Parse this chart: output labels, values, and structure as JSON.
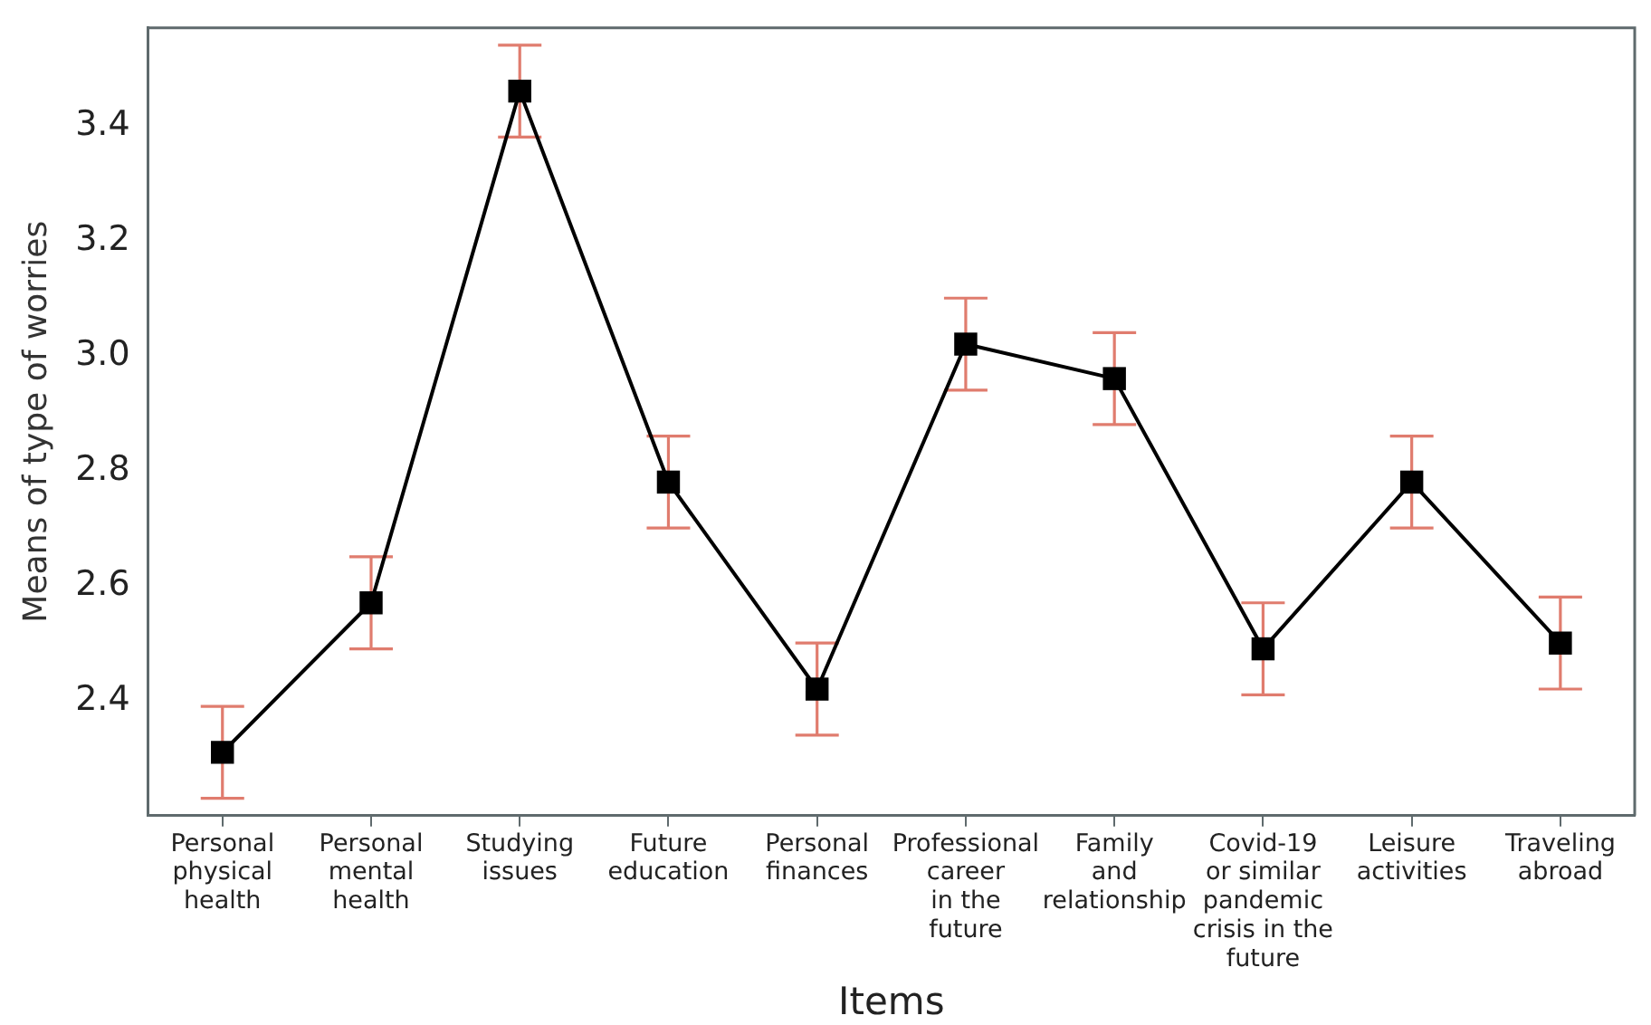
{
  "chart_data": {
    "type": "line",
    "xlabel": "Items",
    "ylabel": "Means of type of worries",
    "categories": [
      "Personal\nphysical\nhealth",
      "Personal\nmental\nhealth",
      "Studying\nissues",
      "Future\neducation",
      "Personal\nfinances",
      "Professional\ncareer\nin the\nfuture",
      "Family\nand\nrelationship",
      "Covid-19\nor similar\npandemic\ncrisis in the\nfuture",
      "Leisure\nactivities",
      "Traveling\nabroad"
    ],
    "values": [
      2.31,
      2.57,
      3.46,
      2.78,
      2.42,
      3.02,
      2.96,
      2.49,
      2.78,
      2.5
    ],
    "errors": [
      0.08,
      0.08,
      0.08,
      0.08,
      0.08,
      0.08,
      0.08,
      0.08,
      0.08,
      0.08
    ],
    "color": "#000000",
    "ylim": [
      2.2,
      3.57
    ],
    "yticks": [
      2.4,
      2.6,
      2.8,
      {
        "value": 3,
        "label": "3.0"
      },
      3.2,
      3.4
    ],
    "marker": "square",
    "line_style": "solid"
  }
}
